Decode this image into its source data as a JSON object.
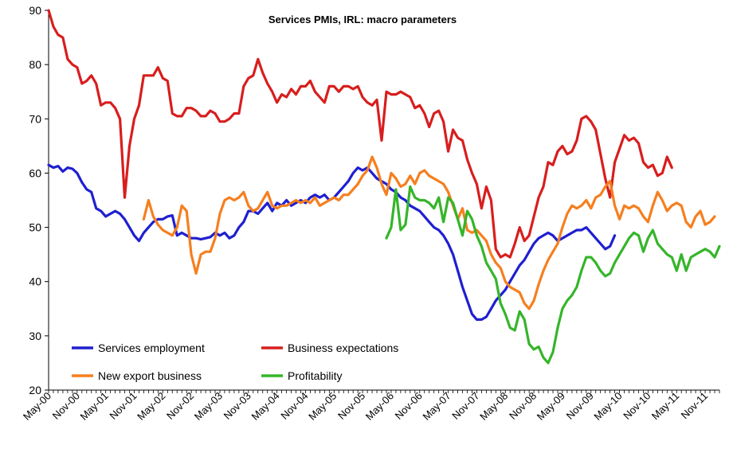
{
  "chart_data": {
    "type": "line",
    "title": "Services PMIs, IRL: macro parameters",
    "xlabel": "",
    "ylabel": "",
    "ylim": [
      20,
      90
    ],
    "yticks": [
      20,
      30,
      40,
      50,
      60,
      70,
      80,
      90
    ],
    "grid": false,
    "legend_placement": "bottom-left",
    "xtick_labels": [
      "May-00",
      "Nov-00",
      "May-01",
      "Nov-01",
      "May-02",
      "Nov-02",
      "May-03",
      "Nov-03",
      "May-04",
      "Nov-04",
      "May-05",
      "Nov-05",
      "May-06",
      "Nov-06",
      "May-07",
      "Nov-07",
      "May-08",
      "Nov-08",
      "May-09",
      "Nov-09",
      "May-10",
      "Nov-10",
      "May-11",
      "Nov-11"
    ],
    "x_start": "May-00",
    "x_end": "Feb-12",
    "series": [
      {
        "name": "Services employment",
        "color": "#1f1fd0",
        "start": "May-00",
        "values": [
          61.5,
          61.0,
          61.3,
          60.3,
          61.0,
          60.8,
          60.0,
          58.3,
          57.0,
          56.5,
          53.5,
          53.0,
          52.0,
          52.5,
          53.0,
          52.5,
          51.5,
          50.0,
          48.5,
          47.5,
          49.0,
          50.0,
          51.0,
          51.5,
          51.5,
          52.0,
          52.2,
          48.5,
          49.0,
          48.5,
          48.0,
          48.0,
          47.8,
          48.0,
          48.2,
          49.0,
          48.5,
          49.0,
          48.0,
          48.5,
          50.0,
          51.0,
          53.0,
          53.0,
          52.5,
          53.5,
          54.5,
          53.0,
          54.5,
          54.0,
          55.0,
          54.0,
          54.5,
          55.0,
          54.5,
          55.5,
          56.0,
          55.5,
          56.0,
          55.0,
          55.5,
          56.5,
          57.5,
          58.5,
          60.0,
          61.0,
          60.5,
          61.0,
          60.0,
          59.0,
          58.5,
          58.0,
          57.0,
          56.5,
          55.5,
          55.0,
          54.0,
          53.5,
          53.0,
          52.0,
          51.0,
          50.0,
          49.5,
          48.5,
          47.0,
          45.0,
          42.0,
          39.0,
          36.5,
          34.0,
          33.0,
          33.0,
          33.5,
          35.0,
          36.5,
          37.5,
          38.5,
          40.0,
          41.5,
          43.0,
          44.0,
          45.5,
          47.0,
          48.0,
          48.5,
          49.0,
          48.5,
          47.5,
          48.0,
          48.5,
          49.0,
          49.5,
          49.5,
          50.0,
          49.0,
          48.0,
          47.0,
          46.0,
          46.5,
          48.5
        ]
      },
      {
        "name": "Business expectations",
        "color": "#d81e1e",
        "start": "May-00",
        "values": [
          90.0,
          87.0,
          85.5,
          85.0,
          81.0,
          80.0,
          79.5,
          76.5,
          77.0,
          78.0,
          76.5,
          72.5,
          73.0,
          73.0,
          72.0,
          70.0,
          55.5,
          65.0,
          70.0,
          72.5,
          78.0,
          78.0,
          78.0,
          79.5,
          77.5,
          77.0,
          71.0,
          70.5,
          70.5,
          72.0,
          72.0,
          71.5,
          70.5,
          70.5,
          71.5,
          71.0,
          69.5,
          69.5,
          70.0,
          71.0,
          71.0,
          76.0,
          77.5,
          78.0,
          81.0,
          78.5,
          76.5,
          75.0,
          73.0,
          74.5,
          74.0,
          75.5,
          74.5,
          76.0,
          76.0,
          77.0,
          75.0,
          74.0,
          73.0,
          76.0,
          76.0,
          75.0,
          76.0,
          76.0,
          75.5,
          76.0,
          74.0,
          73.0,
          72.5,
          73.5,
          66.0,
          75.0,
          74.5,
          74.5,
          75.0,
          74.5,
          74.0,
          72.0,
          72.5,
          71.0,
          68.5,
          71.0,
          71.5,
          69.5,
          64.0,
          68.0,
          66.5,
          66.0,
          62.5,
          60.0,
          58.0,
          53.5,
          57.5,
          55.0,
          46.0,
          44.5,
          45.0,
          44.5,
          47.0,
          50.0,
          47.5,
          48.5,
          52.0,
          55.5,
          57.5,
          62.0,
          61.5,
          64.0,
          65.0,
          63.5,
          64.0,
          66.0,
          70.0,
          70.5,
          69.5,
          68.0,
          63.5,
          59.0,
          55.5,
          62.0,
          64.5,
          67.0,
          66.0,
          66.5,
          65.5,
          62.0,
          61.0,
          61.5,
          59.5,
          60.0,
          63.0,
          61.0
        ]
      },
      {
        "name": "New export business",
        "color": "#f57f1f",
        "start": "Jan-02",
        "values": [
          51.5,
          55.0,
          52.0,
          50.5,
          49.5,
          49.0,
          48.5,
          50.0,
          54.0,
          53.0,
          45.0,
          41.5,
          45.0,
          45.5,
          45.5,
          48.0,
          52.5,
          55.0,
          55.5,
          55.0,
          55.5,
          56.5,
          54.0,
          53.0,
          53.5,
          55.0,
          56.5,
          54.0,
          53.5,
          54.0,
          54.0,
          54.5,
          55.0,
          54.5,
          55.0,
          54.5,
          55.5,
          54.0,
          54.5,
          55.0,
          55.5,
          55.0,
          56.0,
          56.0,
          57.0,
          58.0,
          59.5,
          60.5,
          63.0,
          61.0,
          58.0,
          56.0,
          60.0,
          59.0,
          57.5,
          58.0,
          59.5,
          58.0,
          60.0,
          60.5,
          59.5,
          59.0,
          58.5,
          58.0,
          56.5,
          54.0,
          51.5,
          53.5,
          49.5,
          49.0,
          49.5,
          48.5,
          47.5,
          45.0,
          43.5,
          42.5,
          40.0,
          39.0,
          38.5,
          38.0,
          36.0,
          35.0,
          36.5,
          39.5,
          42.0,
          44.0,
          45.5,
          47.0,
          50.0,
          52.5,
          54.0,
          53.5,
          54.0,
          55.0,
          53.5,
          55.5,
          56.0,
          57.5,
          58.5,
          54.0,
          51.5,
          54.0,
          53.5,
          54.0,
          53.5,
          52.0,
          51.0,
          54.0,
          56.5,
          55.0,
          53.0,
          54.0,
          54.5,
          54.0,
          51.0,
          50.0,
          52.0,
          53.0,
          50.5,
          51.0,
          52.0
        ]
      },
      {
        "name": "Profitability",
        "color": "#35b52a",
        "start": "Apr-06",
        "values": [
          48.0,
          50.0,
          57.0,
          49.5,
          50.5,
          57.5,
          55.5,
          55.0,
          55.0,
          54.5,
          53.5,
          55.5,
          51.0,
          55.5,
          54.5,
          51.5,
          48.5,
          53.0,
          51.5,
          48.5,
          46.5,
          43.5,
          42.0,
          40.5,
          36.0,
          34.0,
          31.5,
          31.0,
          34.5,
          33.0,
          28.5,
          27.5,
          28.0,
          26.0,
          25.0,
          27.0,
          31.5,
          35.0,
          36.5,
          37.5,
          39.0,
          42.0,
          44.5,
          44.5,
          43.5,
          42.0,
          41.0,
          41.5,
          43.5,
          45.0,
          46.5,
          48.0,
          49.0,
          48.5,
          45.5,
          48.0,
          49.5,
          47.0,
          46.0,
          45.0,
          44.5,
          42.0,
          45.0,
          42.0,
          44.5,
          45.0,
          45.5,
          46.0,
          45.5,
          44.5,
          46.5
        ]
      }
    ],
    "legend": [
      {
        "label": "Services employment",
        "color": "#1f1fd0"
      },
      {
        "label": "Business expectations",
        "color": "#d81e1e"
      },
      {
        "label": "New export business",
        "color": "#f57f1f"
      },
      {
        "label": "Profitability",
        "color": "#35b52a"
      }
    ]
  }
}
